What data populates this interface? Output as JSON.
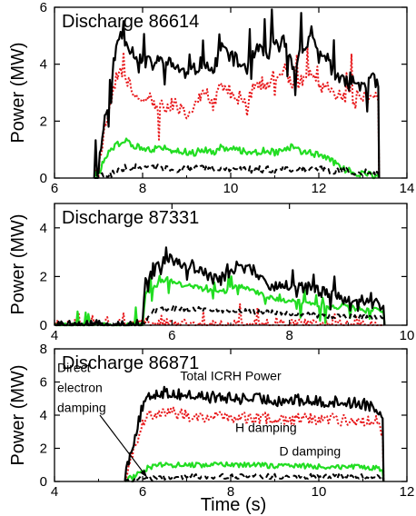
{
  "figure": {
    "xlabel": "Time (s)"
  },
  "colors": {
    "total": "#000000",
    "h": "#e8191c",
    "d": "#22dd22",
    "e": "#000000"
  },
  "chart_data": [
    {
      "type": "line",
      "title": "Discharge 86614",
      "ylabel": "Power (MW)",
      "xlim": [
        6,
        14
      ],
      "ylim": [
        0,
        6
      ],
      "xticks": [
        "6",
        "8",
        "10",
        "12",
        "14"
      ],
      "yticks": [
        "0",
        "2",
        "4",
        "6"
      ],
      "grid": false,
      "t_on": 6.9,
      "t_off": 13.4,
      "series": [
        {
          "key": "total",
          "style": "solid",
          "x": [
            6.9,
            7.0,
            7.2,
            7.4,
            7.5,
            7.6,
            7.8,
            8.0,
            8.2,
            8.4,
            8.6,
            8.8,
            9.0,
            9.2,
            9.4,
            9.6,
            9.8,
            10.0,
            10.2,
            10.4,
            10.6,
            10.8,
            11.0,
            11.2,
            11.4,
            11.6,
            11.8,
            12.0,
            12.2,
            12.4,
            12.6,
            12.8,
            13.0,
            13.2,
            13.35
          ],
          "y": [
            0.1,
            0.4,
            2.8,
            4.5,
            5.1,
            4.9,
            4.4,
            4.1,
            4.0,
            4.1,
            4.0,
            3.9,
            3.6,
            3.8,
            4.2,
            3.7,
            4.6,
            4.3,
            4.0,
            3.9,
            4.5,
            4.3,
            4.6,
            4.8,
            4.0,
            4.4,
            4.9,
            4.3,
            4.2,
            3.5,
            3.3,
            3.4,
            3.3,
            3.5,
            3.2
          ]
        },
        {
          "key": "h",
          "style": "dotted",
          "x": [
            6.9,
            7.0,
            7.2,
            7.4,
            7.5,
            7.6,
            7.8,
            8.0,
            8.2,
            8.4,
            8.6,
            8.8,
            9.0,
            9.2,
            9.4,
            9.6,
            9.8,
            10.0,
            10.2,
            10.4,
            10.6,
            10.8,
            11.0,
            11.2,
            11.4,
            11.6,
            11.8,
            12.0,
            12.2,
            12.4,
            12.6,
            12.8,
            13.0,
            13.2,
            13.35
          ],
          "y": [
            0.1,
            0.3,
            2.0,
            3.6,
            3.9,
            3.6,
            3.1,
            2.8,
            2.6,
            2.5,
            2.6,
            2.5,
            2.3,
            2.6,
            3.0,
            2.6,
            3.3,
            3.0,
            2.8,
            2.7,
            3.4,
            3.2,
            3.6,
            3.9,
            3.2,
            3.5,
            3.7,
            3.2,
            3.1,
            2.8,
            2.9,
            2.9,
            2.8,
            2.9,
            2.7
          ]
        },
        {
          "key": "d",
          "style": "solid",
          "x": [
            6.9,
            7.0,
            7.2,
            7.4,
            7.6,
            7.8,
            8.0,
            8.2,
            8.4,
            8.6,
            8.8,
            9.0,
            9.2,
            9.4,
            9.6,
            9.8,
            10.0,
            10.2,
            10.4,
            10.6,
            10.8,
            11.0,
            11.2,
            11.4,
            11.6,
            11.8,
            12.0,
            12.2,
            12.4,
            12.6,
            12.8,
            13.0,
            13.2,
            13.35
          ],
          "y": [
            0.05,
            0.2,
            0.8,
            1.2,
            1.3,
            1.1,
            1.1,
            1.0,
            1.1,
            1.0,
            1.0,
            0.9,
            0.9,
            1.0,
            0.9,
            1.1,
            1.0,
            1.0,
            0.9,
            0.9,
            1.0,
            0.9,
            1.0,
            1.1,
            0.9,
            0.9,
            0.8,
            0.7,
            0.5,
            0.3,
            0.2,
            0.15,
            0.1,
            0.05
          ]
        },
        {
          "key": "e",
          "style": "dashed",
          "x": [
            6.9,
            7.2,
            7.6,
            8.0,
            8.5,
            9.0,
            9.5,
            10.0,
            10.5,
            11.0,
            11.5,
            12.0,
            12.5,
            13.0,
            13.35
          ],
          "y": [
            0.02,
            0.1,
            0.35,
            0.4,
            0.35,
            0.3,
            0.35,
            0.3,
            0.3,
            0.3,
            0.35,
            0.3,
            0.25,
            0.2,
            0.15
          ]
        }
      ]
    },
    {
      "type": "line",
      "title": "Discharge 87331",
      "ylabel": "Power (MW)",
      "xlim": [
        4,
        10
      ],
      "ylim": [
        0,
        5
      ],
      "xticks": [
        "4",
        "6",
        "8",
        "10"
      ],
      "yticks": [
        "0",
        "2",
        "4"
      ],
      "grid": false,
      "t_on": 5.5,
      "t_off": 9.6,
      "series": [
        {
          "key": "total",
          "style": "solid",
          "x": [
            4.0,
            5.5,
            5.55,
            5.7,
            5.9,
            6.1,
            6.3,
            6.5,
            6.7,
            6.9,
            7.1,
            7.3,
            7.5,
            7.7,
            7.9,
            8.1,
            8.3,
            8.5,
            8.7,
            8.9,
            9.1,
            9.3,
            9.5,
            9.6
          ],
          "y": [
            0.0,
            0.0,
            1.8,
            2.2,
            2.8,
            2.6,
            2.4,
            2.2,
            1.9,
            2.0,
            2.4,
            2.3,
            2.0,
            1.6,
            1.6,
            1.7,
            1.5,
            1.4,
            1.3,
            1.1,
            1.0,
            0.9,
            0.9,
            0.8
          ]
        },
        {
          "key": "h",
          "style": "dotted",
          "x": [
            4.0,
            9.6
          ],
          "y": [
            0.03,
            0.03
          ]
        },
        {
          "key": "d",
          "style": "solid",
          "x": [
            4.0,
            5.5,
            5.55,
            5.7,
            5.9,
            6.1,
            6.3,
            6.5,
            6.7,
            6.9,
            7.1,
            7.3,
            7.5,
            7.7,
            7.9,
            8.1,
            8.3,
            8.5,
            8.7,
            8.9,
            9.1,
            9.3,
            9.5,
            9.6
          ],
          "y": [
            0.0,
            0.0,
            1.3,
            1.6,
            1.9,
            1.7,
            1.6,
            1.5,
            1.4,
            1.4,
            1.6,
            1.5,
            1.3,
            1.1,
            1.0,
            1.0,
            0.9,
            0.8,
            0.7,
            0.8,
            0.7,
            0.6,
            0.7,
            0.6
          ]
        },
        {
          "key": "e",
          "style": "dashed",
          "x": [
            4.0,
            5.5,
            5.7,
            6.0,
            6.5,
            7.0,
            7.5,
            8.0,
            8.5,
            9.0,
            9.5,
            9.6
          ],
          "y": [
            0.0,
            0.0,
            0.6,
            0.7,
            0.65,
            0.6,
            0.55,
            0.5,
            0.4,
            0.35,
            0.3,
            0.3
          ]
        }
      ]
    },
    {
      "type": "line",
      "title": "Discharge 86871",
      "ylabel": "Power (MW)",
      "xlim": [
        4,
        12
      ],
      "ylim": [
        0,
        8
      ],
      "xticks": [
        "4",
        "6",
        "8",
        "10",
        "12"
      ],
      "yticks": [
        "0",
        "2",
        "4",
        "6",
        "8"
      ],
      "grid": false,
      "t_on": 5.6,
      "t_off": 11.5,
      "annotations": [
        "Total ICRH Power",
        "H damping",
        "D damping",
        "Direct",
        "electron",
        "damping"
      ],
      "series": [
        {
          "key": "total",
          "style": "solid",
          "name": "Total ICRH Power",
          "x": [
            5.6,
            5.8,
            6.0,
            6.2,
            6.4,
            6.7,
            7.0,
            7.5,
            8.0,
            8.5,
            9.0,
            9.5,
            10.0,
            10.5,
            11.0,
            11.3,
            11.45
          ],
          "y": [
            0.4,
            2.5,
            4.5,
            5.2,
            5.4,
            5.3,
            5.2,
            5.1,
            5.0,
            5.0,
            4.9,
            4.9,
            4.8,
            4.8,
            4.7,
            4.5,
            3.8
          ]
        },
        {
          "key": "h",
          "style": "dotted",
          "name": "H damping",
          "x": [
            5.6,
            5.8,
            6.0,
            6.2,
            6.4,
            6.7,
            7.0,
            7.5,
            8.0,
            8.5,
            9.0,
            9.5,
            10.0,
            10.5,
            11.0,
            11.3,
            11.45
          ],
          "y": [
            0.3,
            2.0,
            3.6,
            4.1,
            4.2,
            4.1,
            4.0,
            3.9,
            3.9,
            3.8,
            3.8,
            3.8,
            3.8,
            3.7,
            3.7,
            3.6,
            3.0
          ]
        },
        {
          "key": "d",
          "style": "solid",
          "name": "D damping",
          "x": [
            5.6,
            5.8,
            6.0,
            6.2,
            6.5,
            7.0,
            7.5,
            8.0,
            8.5,
            9.0,
            9.5,
            10.0,
            10.5,
            11.0,
            11.3,
            11.45
          ],
          "y": [
            0.05,
            0.3,
            0.7,
            0.9,
            1.0,
            1.0,
            1.0,
            1.0,
            1.0,
            0.95,
            0.95,
            0.9,
            0.9,
            0.85,
            0.8,
            0.6
          ]
        },
        {
          "key": "e",
          "style": "dashed",
          "name": "Direct electron damping",
          "x": [
            5.6,
            6.0,
            6.5,
            7.0,
            8.0,
            9.0,
            10.0,
            11.0,
            11.45
          ],
          "y": [
            0.0,
            0.15,
            0.25,
            0.3,
            0.3,
            0.3,
            0.3,
            0.3,
            0.25
          ]
        }
      ]
    }
  ]
}
